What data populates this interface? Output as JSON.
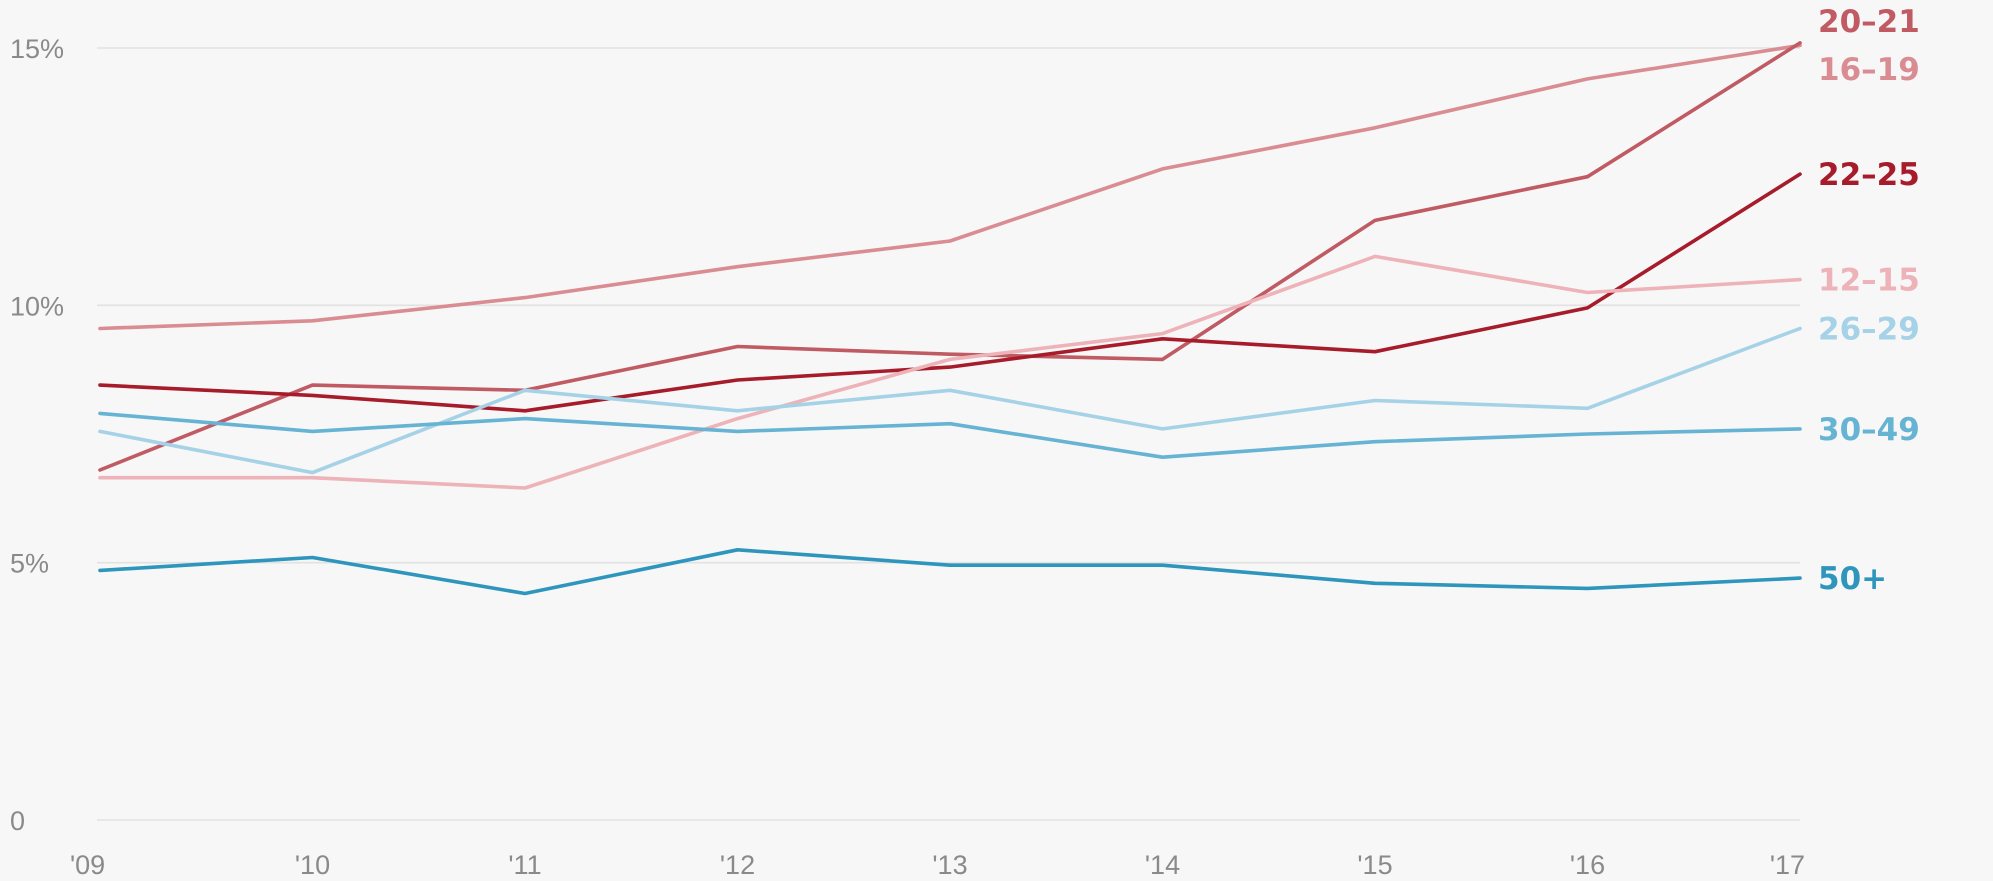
{
  "chart_data": {
    "type": "line",
    "x": [
      "'09",
      "'10",
      "'11",
      "'12",
      "'13",
      "'14",
      "'15",
      "'16",
      "'17"
    ],
    "ylim": [
      0,
      15
    ],
    "y_ticks": [
      {
        "value": 0,
        "label": "0"
      },
      {
        "value": 5,
        "label": "5%"
      },
      {
        "value": 10,
        "label": "10%"
      },
      {
        "value": 15,
        "label": "15%"
      }
    ],
    "grid": true,
    "legend": "direct labels at right end of each line",
    "series": [
      {
        "name": "16–19",
        "color": "#d98c92",
        "values": [
          9.55,
          9.7,
          10.15,
          10.75,
          11.25,
          12.65,
          13.45,
          14.4,
          15.05
        ],
        "bold": false
      },
      {
        "name": "20–21",
        "color": "#c05a63",
        "values": [
          6.8,
          8.45,
          8.35,
          9.2,
          9.05,
          8.95,
          11.65,
          12.5,
          15.1
        ],
        "bold": true
      },
      {
        "name": "22–25",
        "color": "#a61c2b",
        "values": [
          8.45,
          8.25,
          7.95,
          8.55,
          8.8,
          9.35,
          9.1,
          9.95,
          12.55
        ],
        "bold": true
      },
      {
        "name": "12–15",
        "color": "#edb3b8",
        "values": [
          6.65,
          6.65,
          6.45,
          7.8,
          8.95,
          9.45,
          10.95,
          10.25,
          10.5
        ],
        "bold": false
      },
      {
        "name": "26–29",
        "color": "#a5d2e6",
        "values": [
          7.55,
          6.75,
          8.35,
          7.95,
          8.35,
          7.6,
          8.15,
          8.0,
          9.55
        ],
        "bold": false
      },
      {
        "name": "30–49",
        "color": "#66b3d3",
        "values": [
          7.9,
          7.55,
          7.8,
          7.55,
          7.7,
          7.05,
          7.35,
          7.5,
          7.6
        ],
        "bold": true
      },
      {
        "name": "50+",
        "color": "#2e95bd",
        "values": [
          4.85,
          5.1,
          4.4,
          5.25,
          4.95,
          4.95,
          4.6,
          4.5,
          4.7
        ],
        "bold": true
      }
    ]
  }
}
